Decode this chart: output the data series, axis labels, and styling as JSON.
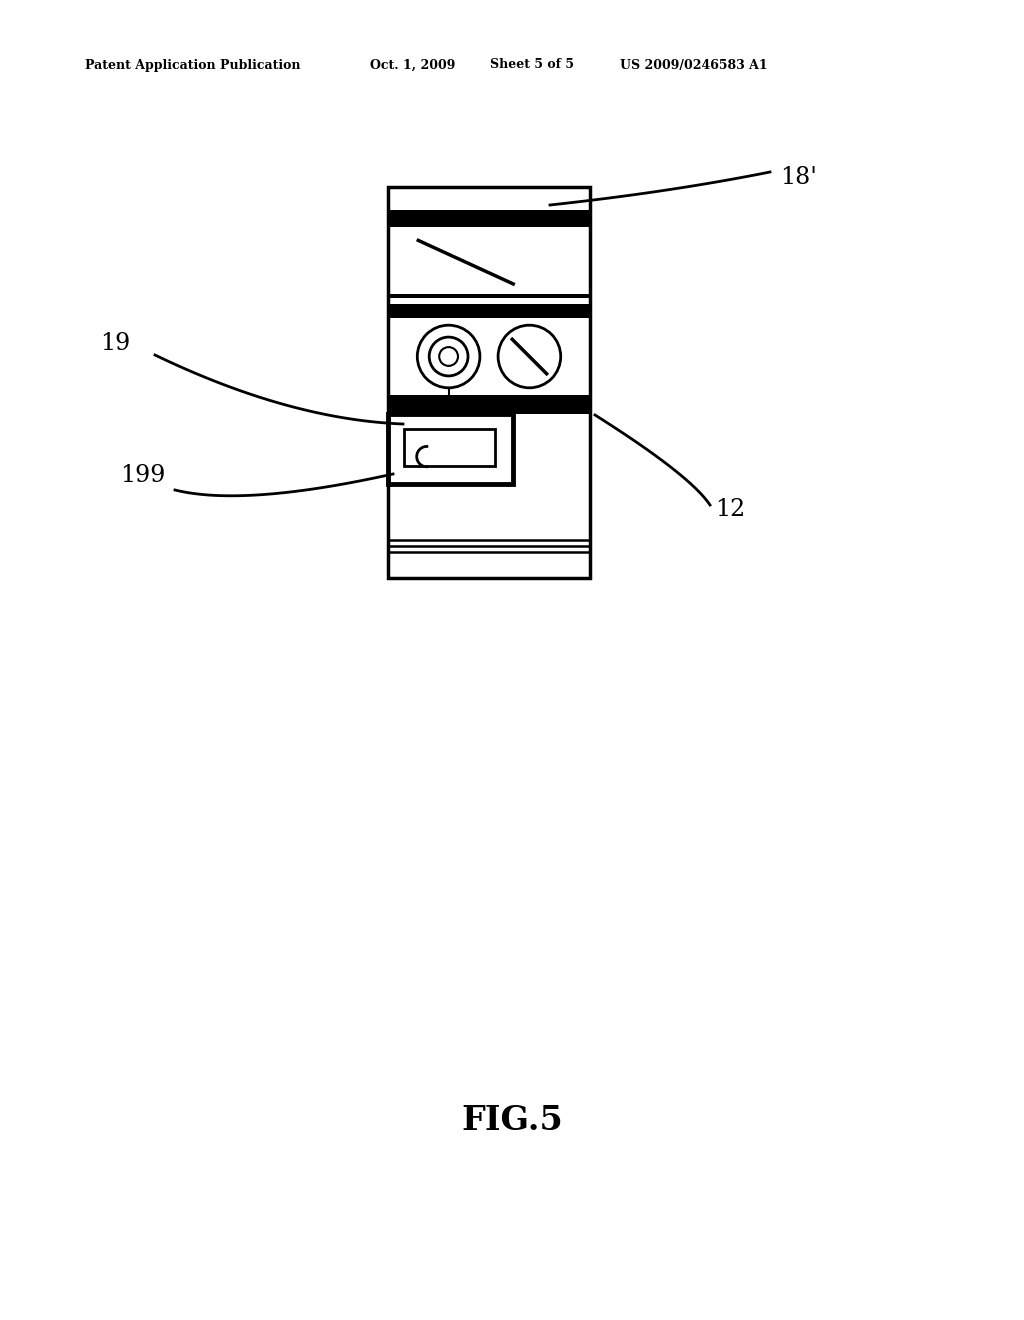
{
  "bg_color": "#ffffff",
  "line_color": "#000000",
  "header_text": "Patent Application Publication",
  "header_date": "Oct. 1, 2009",
  "header_sheet": "Sheet 5 of 5",
  "header_patent": "US 2009/0246583 A1",
  "fig_label": "FIG.5",
  "label_18": "18'",
  "label_19": "19",
  "label_199": "199",
  "label_12": "12"
}
